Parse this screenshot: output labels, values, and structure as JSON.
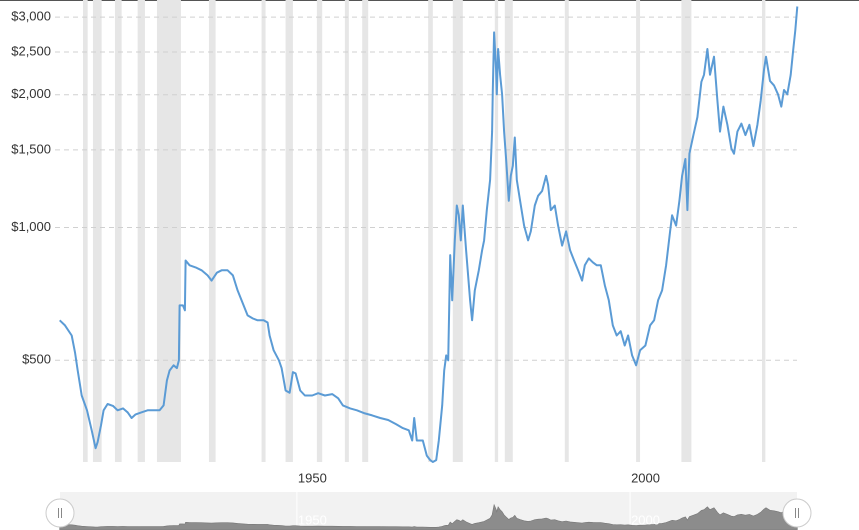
{
  "chart_data": {
    "type": "line",
    "x": [
      1914.4,
      1915.2,
      1916.2,
      1916.7,
      1917.1,
      1917.7,
      1918.5,
      1919.2,
      1919.8,
      1920.1,
      1920.6,
      1921,
      1921.6,
      1922.4,
      1923.1,
      1923.9,
      1924.6,
      1925.2,
      1925.8,
      1926.7,
      1927.6,
      1928.7,
      1929.4,
      1930,
      1930.5,
      1930.9,
      1931.5,
      1932,
      1932.3,
      1932.4,
      1932.9,
      1933.2,
      1933.3,
      1933.9,
      1934.8,
      1935.7,
      1936.6,
      1937.2,
      1938,
      1938.7,
      1939.6,
      1940.4,
      1941.1,
      1942,
      1942.6,
      1943.4,
      1944.1,
      1945,
      1945.6,
      1945.9,
      1946.5,
      1947.3,
      1947.7,
      1948.3,
      1948.9,
      1949.4,
      1949.8,
      1950.5,
      1951.2,
      1952.3,
      1953.2,
      1954.2,
      1955.3,
      1956.2,
      1956.9,
      1958,
      1959,
      1960.2,
      1961.3,
      1962.5,
      1963.7,
      1964.9,
      1965.9,
      1966.8,
      1967.3,
      1967.6,
      1968,
      1968.9,
      1969.5,
      1970,
      1970.4,
      1970.9,
      1971.3,
      1971.8,
      1972.1,
      1972.4,
      1972.7,
      1973,
      1973.3,
      1973.7,
      1974,
      1974.3,
      1974.6,
      1974.9,
      1975.4,
      1976,
      1976.3,
      1976.7,
      1977.3,
      1977.8,
      1978.1,
      1978.5,
      1979,
      1979.3,
      1979.4,
      1979.6,
      1979.9,
      1980,
      1980.2,
      1980.5,
      1980.8,
      1981.1,
      1981.4,
      1981.8,
      1982.1,
      1982.4,
      1982.7,
      1983,
      1983.5,
      1984.1,
      1984.7,
      1985.1,
      1985.7,
      1986.2,
      1986.8,
      1987.4,
      1987.7,
      1988.1,
      1988.7,
      1989.2,
      1989.8,
      1990.4,
      1991,
      1991.6,
      1992.2,
      1992.8,
      1993.2,
      1993.8,
      1994.4,
      1995,
      1995.6,
      1996.2,
      1996.8,
      1997.4,
      1998,
      1998.6,
      1999.2,
      1999.7,
      2000.3,
      2000.9,
      2001.5,
      2002.3,
      2003,
      2003.6,
      2004.2,
      2004.8,
      2005.4,
      2006,
      2006.3,
      2006.9,
      2007.4,
      2007.8,
      2008.3,
      2008.6,
      2008.9,
      2009.5,
      2010.1,
      2010.7,
      2011.1,
      2011.6,
      2012,
      2012.6,
      2013.1,
      2013.5,
      2014,
      2014.6,
      2015.2,
      2015.6,
      2016.1,
      2016.7,
      2017.3,
      2017.9,
      2018.5,
      2019.1,
      2019.6,
      2020.1,
      2020.4,
      2021,
      2021.6,
      2022.2,
      2022.7,
      2023.1,
      2023.6,
      2024.1,
      2024.5,
      2024.8,
      2025.1
    ],
    "values": [
      616,
      600,
      569,
      521,
      474,
      416,
      385,
      347,
      316,
      326,
      356,
      385,
      398,
      394,
      385,
      389,
      381,
      370,
      377,
      381,
      385,
      385,
      385,
      395,
      450,
      474,
      487,
      480,
      500,
      666,
      666,
      649,
      842,
      821,
      812,
      800,
      779,
      758,
      790,
      800,
      800,
      779,
      720,
      666,
      632,
      622,
      616,
      616,
      609,
      569,
      527,
      500,
      480,
      427,
      422,
      470,
      467,
      427,
      416,
      416,
      421,
      416,
      419,
      410,
      395,
      389,
      385,
      379,
      375,
      370,
      366,
      358,
      351,
      347,
      329,
      370,
      329,
      329,
      304,
      297,
      294,
      297,
      329,
      395,
      474,
      513,
      500,
      866,
      684,
      935,
      1122,
      1066,
      935,
      1122,
      888,
      684,
      616,
      720,
      800,
      888,
      935,
      1095,
      1282,
      1650,
      2046,
      2770,
      2275,
      2005,
      2540,
      2220,
      2005,
      1650,
      1430,
      1150,
      1310,
      1380,
      1600,
      1282,
      1150,
      1010,
      935,
      980,
      1122,
      1180,
      1210,
      1310,
      1250,
      1095,
      1122,
      1010,
      910,
      980,
      888,
      842,
      800,
      758,
      821,
      851,
      834,
      821,
      821,
      740,
      684,
      600,
      569,
      582,
      540,
      569,
      513,
      487,
      527,
      540,
      600,
      616,
      684,
      720,
      821,
      980,
      1066,
      1010,
      1150,
      1310,
      1430,
      1095,
      1470,
      1620,
      1780,
      2140,
      2220,
      2540,
      2220,
      2440,
      1940,
      1650,
      1880,
      1710,
      1510,
      1470,
      1650,
      1720,
      1620,
      1710,
      1530,
      1710,
      1940,
      2280,
      2440,
      2150,
      2100,
      2005,
      1880,
      2050,
      2005,
      2220,
      2540,
      2800,
      3170
    ],
    "color": "#5b9bd5",
    "recessions": [
      [
        1917.9,
        1918.6
      ],
      [
        1919.4,
        1920.7
      ],
      [
        1922.7,
        1923.7
      ],
      [
        1926.1,
        1927.2
      ],
      [
        1929,
        1932.6
      ],
      [
        1936.8,
        1937.8
      ],
      [
        1944.7,
        1945.3
      ],
      [
        1948.3,
        1949.4
      ],
      [
        1953,
        1953.8
      ],
      [
        1957.2,
        1957.8
      ],
      [
        1959.8,
        1960.7
      ],
      [
        1969.7,
        1970.4
      ],
      [
        1973.4,
        1974.9
      ],
      [
        1979.7,
        1980.2
      ],
      [
        1981.2,
        1982.4
      ],
      [
        1990.2,
        1990.8
      ],
      [
        2000.9,
        2001.5
      ],
      [
        2007.7,
        2009.2
      ],
      [
        2019.8,
        2020.3
      ]
    ],
    "recession_color": "#e6e6e6",
    "xlim": [
      1913.7,
      2025.5
    ],
    "xticks": [
      1950,
      2000
    ],
    "ylim": [
      294,
      3280
    ],
    "yscale": "log",
    "yticks": [
      {
        "value": 500,
        "label": "$500"
      },
      {
        "value": 1000,
        "label": "$1,000"
      },
      {
        "value": 1500,
        "label": "$1,500"
      },
      {
        "value": 2000,
        "label": "$2,000"
      },
      {
        "value": 2500,
        "label": "$2,500"
      },
      {
        "value": 3000,
        "label": "$3,000"
      }
    ],
    "grid": true
  }
}
